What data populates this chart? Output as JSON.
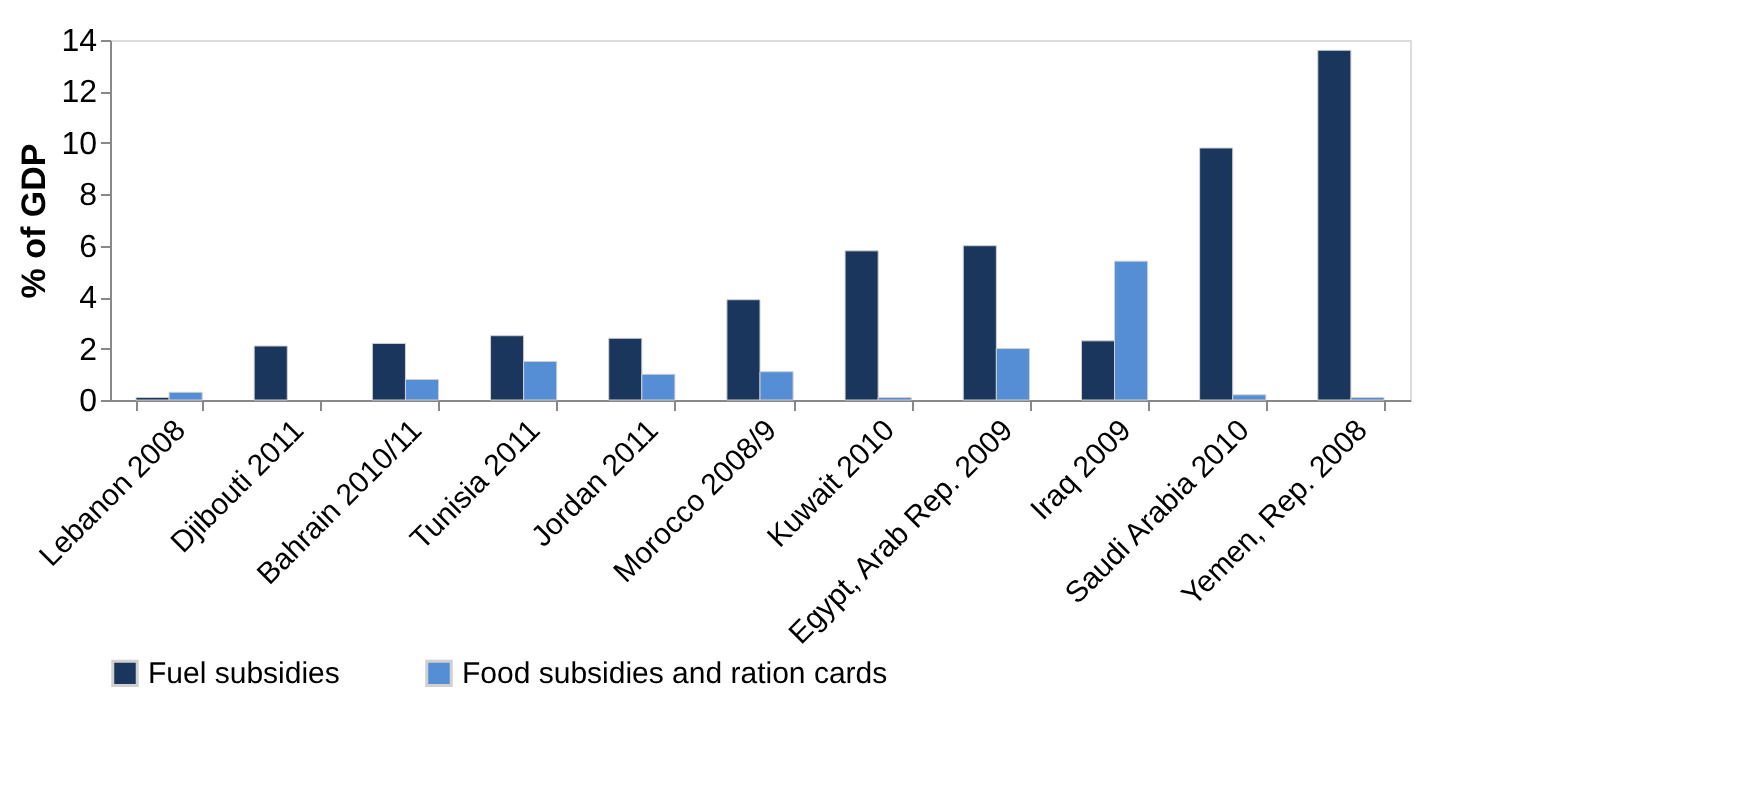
{
  "chart_data": {
    "type": "bar",
    "ylabel": "% of GDP",
    "categories": [
      "Lebanon 2008",
      "Djibouti 2011",
      "Bahrain 2010/11",
      "Tunisia 2011",
      "Jordan 2011",
      "Morocco 2008/9",
      "Kuwait 2010",
      "Egypt, Arab Rep. 2009",
      "Iraq  2009",
      "Saudi Arabia 2010",
      "Yemen, Rep. 2008"
    ],
    "series": [
      {
        "name": "Fuel subsidies",
        "color": "#1b365d",
        "values": [
          0.1,
          2.1,
          2.2,
          2.5,
          2.4,
          3.9,
          5.8,
          6.0,
          2.3,
          9.8,
          13.6
        ]
      },
      {
        "name": "Food subsidies and ration cards",
        "color": "#558ed5",
        "values": [
          0.3,
          null,
          0.8,
          1.5,
          1.0,
          1.1,
          0.1,
          2.0,
          5.4,
          0.2,
          0.1
        ]
      }
    ],
    "ylim": [
      0,
      14
    ],
    "yticks": [
      0,
      2,
      4,
      6,
      8,
      10,
      12,
      14
    ],
    "grid": false,
    "legend": "bottom"
  }
}
